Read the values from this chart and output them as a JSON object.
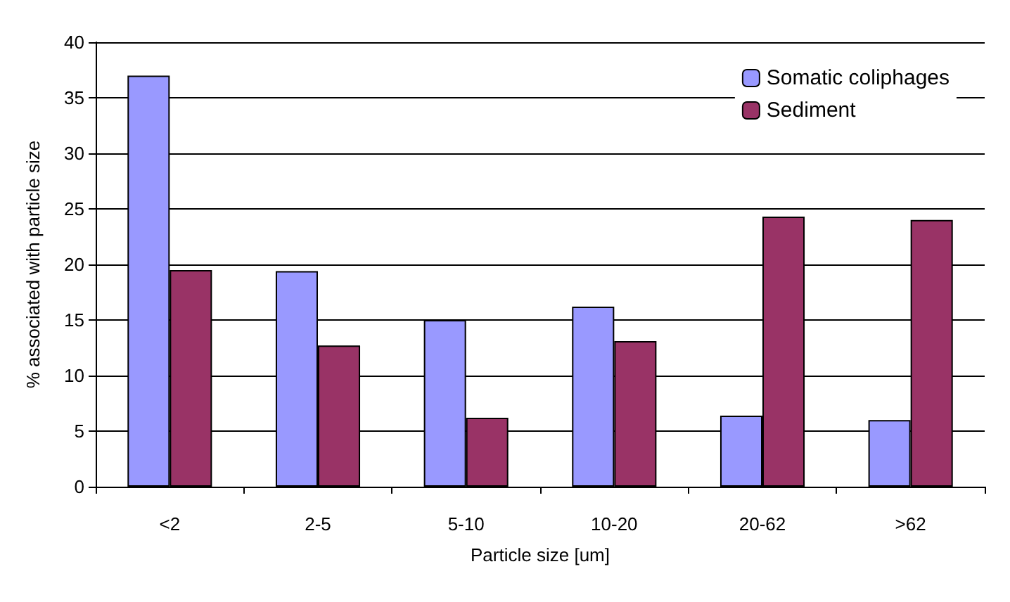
{
  "chart_data": {
    "type": "bar",
    "xlabel": "Particle size [um]",
    "ylabel": "% associated with particle size",
    "categories": [
      "<2",
      "2-5",
      "5-10",
      "10-20",
      "20-62",
      ">62"
    ],
    "series": [
      {
        "name": "Somatic coliphages",
        "color": "#9999ff",
        "values": [
          37,
          19.4,
          15,
          16.2,
          6.4,
          6.0
        ]
      },
      {
        "name": "Sediment",
        "color": "#993366",
        "values": [
          19.5,
          12.7,
          6.2,
          13.1,
          24.3,
          24.0
        ]
      }
    ],
    "ylim": [
      0,
      40
    ],
    "yticks": [
      0,
      5,
      10,
      15,
      20,
      25,
      30,
      35,
      40
    ],
    "grid": "y",
    "legend": "top right"
  }
}
